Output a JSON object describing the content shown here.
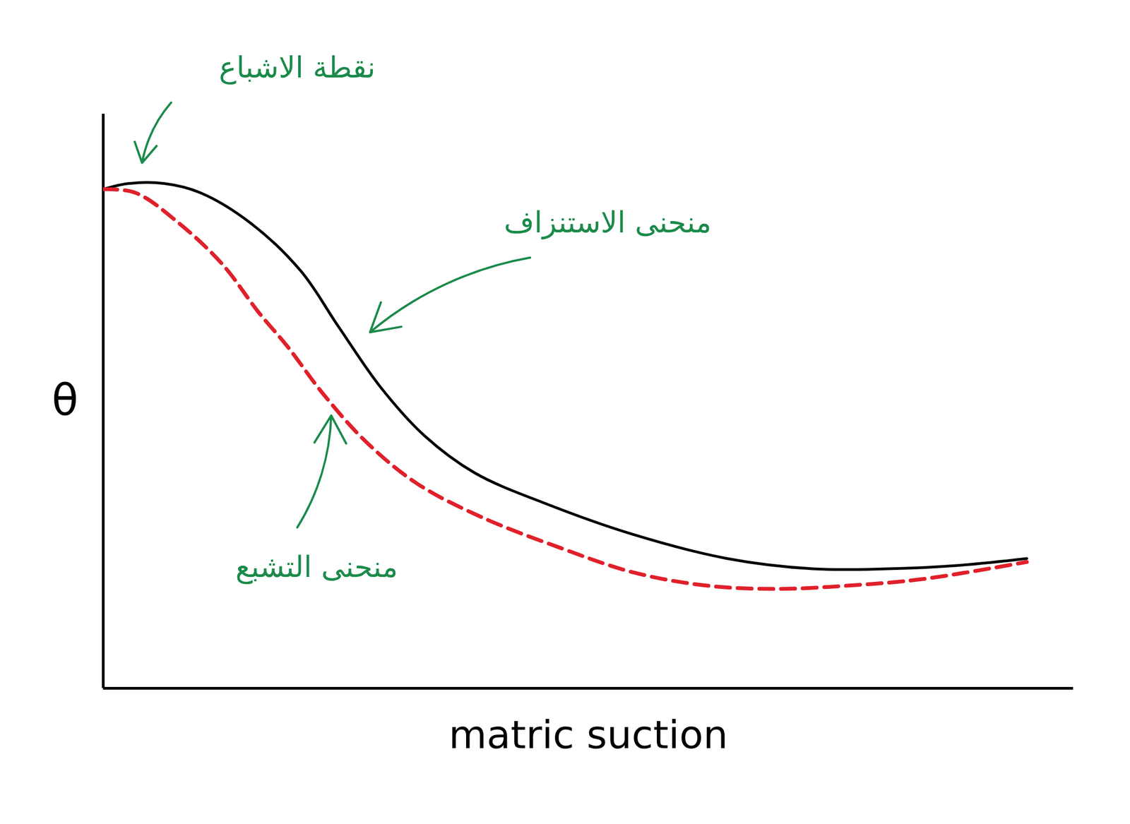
{
  "chart_data": {
    "type": "line",
    "x_label": "matric suction",
    "y_label": "θ",
    "xlim": [
      0,
      100
    ],
    "ylim": [
      0,
      100
    ],
    "xticks": [],
    "yticks": [],
    "tick_labels": false,
    "grid": false,
    "series": [
      {
        "name": "منحنى الاستنزاف",
        "color": "#000000",
        "line_style": "solid",
        "x": [
          0,
          2.6,
          6.3,
          10.0,
          15.2,
          20.4,
          24.2,
          28.6,
          33.1,
          38.3,
          45.7,
          54.6,
          64.3,
          73.2,
          80.7,
          88.1,
          95.2
        ],
        "values": [
          86.9,
          87.9,
          87.9,
          86.3,
          81.0,
          72.6,
          63.1,
          52.4,
          44.0,
          37.5,
          32.1,
          26.8,
          22.6,
          20.8,
          20.8,
          21.4,
          22.6
        ]
      },
      {
        "name": "منحنى التشبع",
        "color": "#e0202a",
        "line_style": "dashed",
        "x": [
          0,
          3.3,
          7.8,
          12.3,
          16.0,
          19.0,
          22.7,
          27.1,
          32.3,
          39.0,
          47.2,
          54.6,
          62.1,
          69.5,
          76.9,
          84.4,
          95.2
        ],
        "values": [
          86.9,
          86.3,
          81.0,
          73.8,
          65.5,
          59.5,
          51.2,
          42.9,
          35.7,
          29.8,
          24.4,
          20.2,
          17.9,
          17.3,
          17.9,
          19.0,
          22.0
        ]
      }
    ],
    "annotations": [
      "نقطة الاشباع",
      "منحنى الاستنزاف",
      "منحنى التشبع"
    ],
    "annotation_color": "#1a8a4a"
  }
}
